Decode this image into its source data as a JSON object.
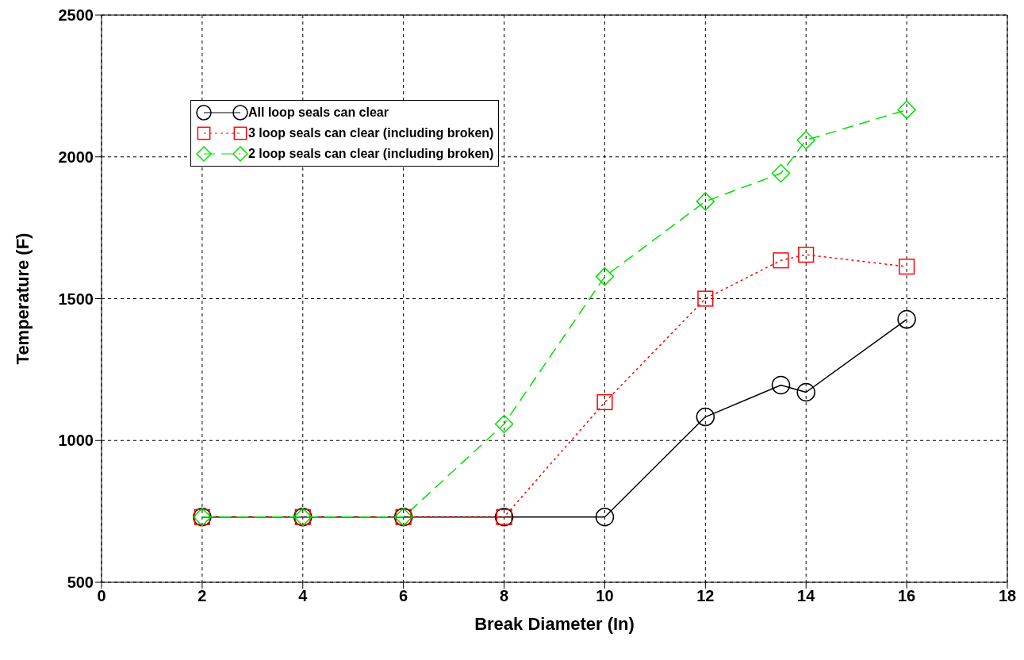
{
  "chart_data": {
    "type": "line",
    "xlabel": "Break Diameter (In)",
    "ylabel": "Temperature (F)",
    "x": [
      2,
      4,
      6,
      8,
      10,
      12,
      13.5,
      14,
      16
    ],
    "series": [
      {
        "name": "All loop seals can clear",
        "color": "#000000",
        "marker": "circle",
        "line_style": "solid",
        "values": [
          730,
          730,
          730,
          730,
          730,
          1083,
          1195,
          1170,
          1427
        ]
      },
      {
        "name": "3 loop seals can clear (including broken)",
        "color": "#ff0000",
        "marker": "square",
        "line_style": "dotted",
        "values": [
          730,
          730,
          730,
          730,
          1135,
          1500,
          1635,
          1655,
          1613
        ]
      },
      {
        "name": "2 loop seals can clear (including broken)",
        "color": "#00e000",
        "marker": "diamond",
        "line_style": "dashed",
        "values": [
          730,
          730,
          730,
          1058,
          1578,
          1843,
          1942,
          2059,
          2166
        ]
      }
    ],
    "xlim": [
      0,
      18
    ],
    "xticks": [
      0,
      2,
      4,
      6,
      8,
      10,
      12,
      14,
      16,
      18
    ],
    "ylim": [
      500,
      2500
    ],
    "yticks": [
      500,
      1000,
      1500,
      2000,
      2500
    ],
    "grid": true,
    "legend": "top left"
  }
}
